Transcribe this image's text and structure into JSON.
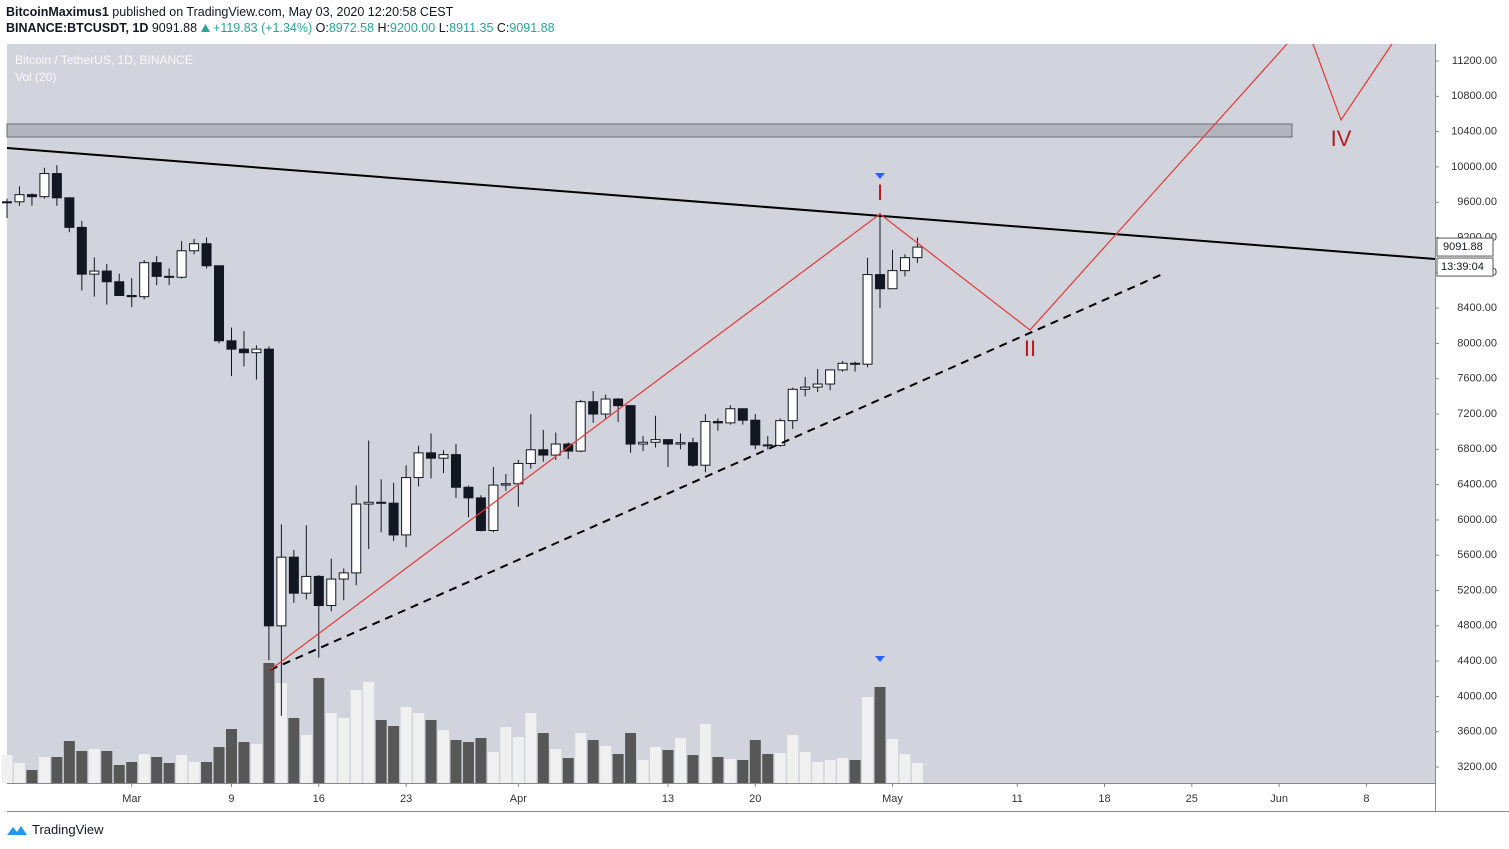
{
  "header": {
    "author": "BitcoinMaximus1",
    "published": "published on TradingView.com, May 03, 2020 12:20:58 CEST",
    "symbol": "BINANCE:BTCUSDT, 1D",
    "last": "9091.88",
    "change": "+119.83 (+1.34%)",
    "ohlc": [
      {
        "key": "O:",
        "value": "8972.58"
      },
      {
        "key": "H:",
        "value": "9200.00"
      },
      {
        "key": "L:",
        "value": "8911.35"
      },
      {
        "key": "C:",
        "value": "9091.88"
      }
    ]
  },
  "footer": {
    "brand": "TradingView"
  },
  "chart_data": {
    "type": "candlestick",
    "title": "Bitcoin / TetherUS, 1D, BINANCE",
    "subtitle": "Vol (20)",
    "x": [
      0,
      1,
      2,
      3,
      4,
      5,
      6,
      7,
      8,
      9,
      10,
      11,
      12,
      13,
      14,
      15,
      16,
      17,
      18,
      19,
      20,
      21,
      22,
      23,
      24,
      25,
      26,
      27,
      28,
      29,
      30,
      31,
      32,
      33,
      34,
      35,
      36,
      37,
      38,
      39,
      40,
      41,
      42,
      43,
      44,
      45,
      46,
      47,
      48,
      49,
      50,
      51,
      52,
      53,
      54,
      55,
      56,
      57,
      58,
      59,
      60,
      61,
      62,
      63,
      64,
      65,
      66,
      67,
      68,
      69,
      70,
      71,
      72,
      73
    ],
    "open": [
      9597,
      9605,
      9686,
      9663,
      9925,
      9650,
      9315,
      8785,
      8820,
      8699,
      8543,
      8530,
      8915,
      8760,
      8750,
      9050,
      9130,
      8880,
      8030,
      7935,
      7895,
      7935,
      4800,
      5578,
      5170,
      5360,
      5030,
      5330,
      5400,
      6180,
      6200,
      6190,
      5830,
      6480,
      6760,
      6700,
      6740,
      6370,
      6250,
      5880,
      6395,
      6410,
      6640,
      6795,
      6735,
      6860,
      6780,
      7340,
      7200,
      7370,
      7295,
      6860,
      6880,
      6910,
      6860,
      6875,
      6620,
      7115,
      7100,
      7260,
      7130,
      6850,
      6845,
      7125,
      7480,
      7505,
      7540,
      7700,
      7775,
      7765,
      8780,
      8620,
      8825,
      8972.58
    ],
    "high": [
      9640,
      9780,
      9700,
      9990,
      10020,
      9650,
      9390,
      8975,
      8900,
      8790,
      8740,
      8945,
      8990,
      8850,
      9160,
      9185,
      9200,
      8880,
      8180,
      8140,
      7980,
      7965,
      5950,
      5660,
      5940,
      5375,
      5560,
      5450,
      6390,
      6900,
      6460,
      6420,
      6620,
      6840,
      6980,
      6790,
      6860,
      6390,
      6280,
      6600,
      6520,
      6680,
      7200,
      7020,
      6990,
      6880,
      7360,
      7460,
      7420,
      7380,
      7300,
      6950,
      7180,
      6910,
      6980,
      6930,
      7200,
      7150,
      7300,
      7260,
      7200,
      6950,
      7150,
      7500,
      7620,
      7710,
      7700,
      7800,
      7795,
      8970,
      9480,
      9060,
      9010,
      9200
    ],
    "low": [
      9420,
      9560,
      9560,
      9640,
      9560,
      9260,
      8600,
      8530,
      8440,
      8570,
      8410,
      8500,
      8660,
      8660,
      8735,
      9010,
      8850,
      8000,
      7630,
      7740,
      7590,
      4410,
      3780,
      5060,
      5100,
      4440,
      4965,
      5090,
      5260,
      5670,
      5860,
      5760,
      5690,
      6380,
      6470,
      6530,
      6250,
      6030,
      5870,
      5860,
      6330,
      6150,
      6580,
      6660,
      6680,
      6690,
      6770,
      7100,
      7150,
      7110,
      6760,
      6780,
      6820,
      6600,
      6800,
      6600,
      6540,
      7010,
      7080,
      7080,
      6800,
      6800,
      6830,
      7030,
      7400,
      7450,
      7470,
      7680,
      7680,
      7730,
      8400,
      8620,
      8760,
      8911.35
    ],
    "close": [
      9605,
      9686,
      9663,
      9925,
      9650,
      9315,
      8785,
      8820,
      8699,
      8543,
      8530,
      8915,
      8760,
      8750,
      9050,
      9130,
      8880,
      8030,
      7935,
      7895,
      7935,
      4800,
      5578,
      5170,
      5360,
      5030,
      5330,
      5400,
      6180,
      6200,
      6190,
      5830,
      6480,
      6760,
      6700,
      6740,
      6370,
      6250,
      5880,
      6395,
      6410,
      6640,
      6795,
      6735,
      6860,
      6780,
      7340,
      7200,
      7370,
      7295,
      6860,
      6880,
      6910,
      6860,
      6875,
      6620,
      7115,
      7100,
      7260,
      7130,
      6850,
      6845,
      7125,
      7480,
      7505,
      7540,
      7700,
      7775,
      7765,
      8780,
      8620,
      8825,
      8972,
      9091.88
    ],
    "volume": [
      92400,
      66000,
      42900,
      85800,
      85800,
      138600,
      105600,
      112200,
      105600,
      59400,
      69300,
      95700,
      85800,
      66000,
      92400,
      69300,
      69300,
      118800,
      178200,
      135300,
      128700,
      396000,
      330000,
      214500,
      158400,
      346500,
      231000,
      214500,
      306900,
      333300,
      207900,
      188100,
      250800,
      231000,
      207900,
      174900,
      141900,
      135300,
      148500,
      102300,
      184800,
      151800,
      231000,
      165000,
      112200,
      82500,
      165000,
      141900,
      122100,
      95700,
      165000,
      75900,
      118800,
      108900,
      148500,
      92400,
      194700,
      85800,
      79200,
      75900,
      141900,
      95700,
      99000,
      158400,
      102300,
      69300,
      75900,
      82500,
      75900,
      283800,
      316800,
      145200,
      95700,
      66000
    ],
    "up_color": "#ffffff",
    "down_color": "#131722",
    "volume_up_color": "#f0f0f0",
    "volume_down_color": "#575757",
    "xlim": [
      0,
      114.5
    ],
    "xticks": [
      {
        "value": 10,
        "label": "Mar"
      },
      {
        "value": 18,
        "label": "9"
      },
      {
        "value": 25,
        "label": "16"
      },
      {
        "value": 32,
        "label": "23"
      },
      {
        "value": 41,
        "label": "Apr"
      },
      {
        "value": 53,
        "label": "13"
      },
      {
        "value": 60,
        "label": "20"
      },
      {
        "value": 71,
        "label": "May"
      },
      {
        "value": 81,
        "label": "11"
      },
      {
        "value": 88,
        "label": "18"
      },
      {
        "value": 95,
        "label": "25"
      },
      {
        "value": 102,
        "label": "Jun"
      },
      {
        "value": 109,
        "label": "8"
      }
    ],
    "ylim": [
      3019,
      11393
    ],
    "yticks": [
      {
        "value": 3200,
        "label": "3200.00"
      },
      {
        "value": 3600,
        "label": "3600.00"
      },
      {
        "value": 4000,
        "label": "4000.00"
      },
      {
        "value": 4400,
        "label": "4400.00"
      },
      {
        "value": 4800,
        "label": "4800.00"
      },
      {
        "value": 5200,
        "label": "5200.00"
      },
      {
        "value": 5600,
        "label": "5600.00"
      },
      {
        "value": 6000,
        "label": "6000.00"
      },
      {
        "value": 6400,
        "label": "6400.00"
      },
      {
        "value": 6800,
        "label": "6800.00"
      },
      {
        "value": 7200,
        "label": "7200.00"
      },
      {
        "value": 7600,
        "label": "7600.00"
      },
      {
        "value": 8000,
        "label": "8000.00"
      },
      {
        "value": 8400,
        "label": "8400.00"
      },
      {
        "value": 8800,
        "label": "8800.00"
      },
      {
        "value": 9200,
        "label": "9200.00"
      },
      {
        "value": 9600,
        "label": "9600.00"
      },
      {
        "value": 10000,
        "label": "10000.00"
      },
      {
        "value": 10400,
        "label": "10400.00"
      },
      {
        "value": 10800,
        "label": "10800.00"
      },
      {
        "value": 11200,
        "label": "11200.00"
      }
    ],
    "last_price": {
      "value": 9091.88,
      "label": "9091.88"
    },
    "countdown": "13:39:04",
    "annotations": [
      "I",
      "II",
      "IV"
    ],
    "grid": false
  }
}
